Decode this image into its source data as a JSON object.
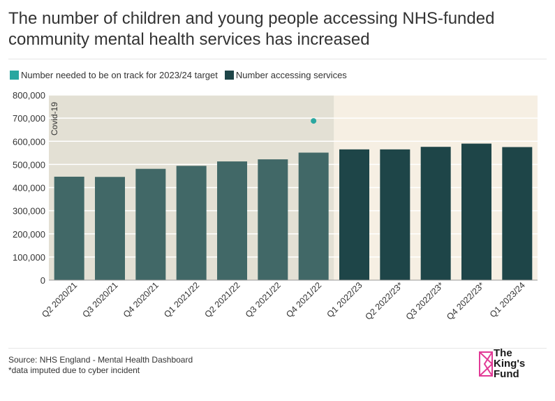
{
  "header": {
    "title": "The number of children and young people accessing NHS-funded community mental health services has increased"
  },
  "legend": {
    "items": [
      {
        "label": "Number needed to be on track for 2023/24 target",
        "color": "#2aa7a0"
      },
      {
        "label": "Number accessing services",
        "color": "#1e4548"
      }
    ]
  },
  "chart_data": {
    "type": "bar",
    "title": "The number of children and young people accessing NHS-funded community mental health services has increased",
    "categories": [
      "Q2 2020/21",
      "Q3 2020/21",
      "Q4 2020/21",
      "Q1 2021/22",
      "Q2 2021/22",
      "Q3 2021/22",
      "Q4 2021/22",
      "Q1 2022/23",
      "Q2 2022/23*",
      "Q3 2022/23*",
      "Q4 2022/23*",
      "Q1 2023/24"
    ],
    "series": [
      {
        "name": "Number accessing services",
        "values": [
          447000,
          446000,
          481000,
          494000,
          513000,
          522000,
          551000,
          565000,
          565000,
          576000,
          590000,
          575000
        ]
      },
      {
        "name": "Number needed to be on track for 2023/24 target",
        "values": [
          null,
          null,
          null,
          null,
          null,
          null,
          688000,
          null,
          null,
          null,
          null,
          null
        ]
      }
    ],
    "ylim": [
      0,
      800000
    ],
    "yticks": [
      "0",
      "100,000",
      "200,000",
      "300,000",
      "400,000",
      "500,000",
      "600,000",
      "700,000",
      "800,000"
    ],
    "ytick_values": [
      0,
      100000,
      200000,
      300000,
      400000,
      500000,
      600000,
      700000,
      800000
    ],
    "covid_label": "Covid-19",
    "covid_period_end_index": 6,
    "xlabel": "",
    "ylabel": "",
    "colors": {
      "bar_covid": "#416867",
      "bar_post": "#1e4548",
      "target_dot": "#2aa7a0",
      "covid_bg": "#e3e0d4",
      "post_bg": "#f6efe3"
    }
  },
  "footer": {
    "source": "Source: NHS England - Mental Health Dashboard",
    "note": "*data imputed due to cyber incident",
    "logo_lines": [
      "The",
      "King's",
      "Fund"
    ],
    "logo_color": "#e23a96"
  }
}
